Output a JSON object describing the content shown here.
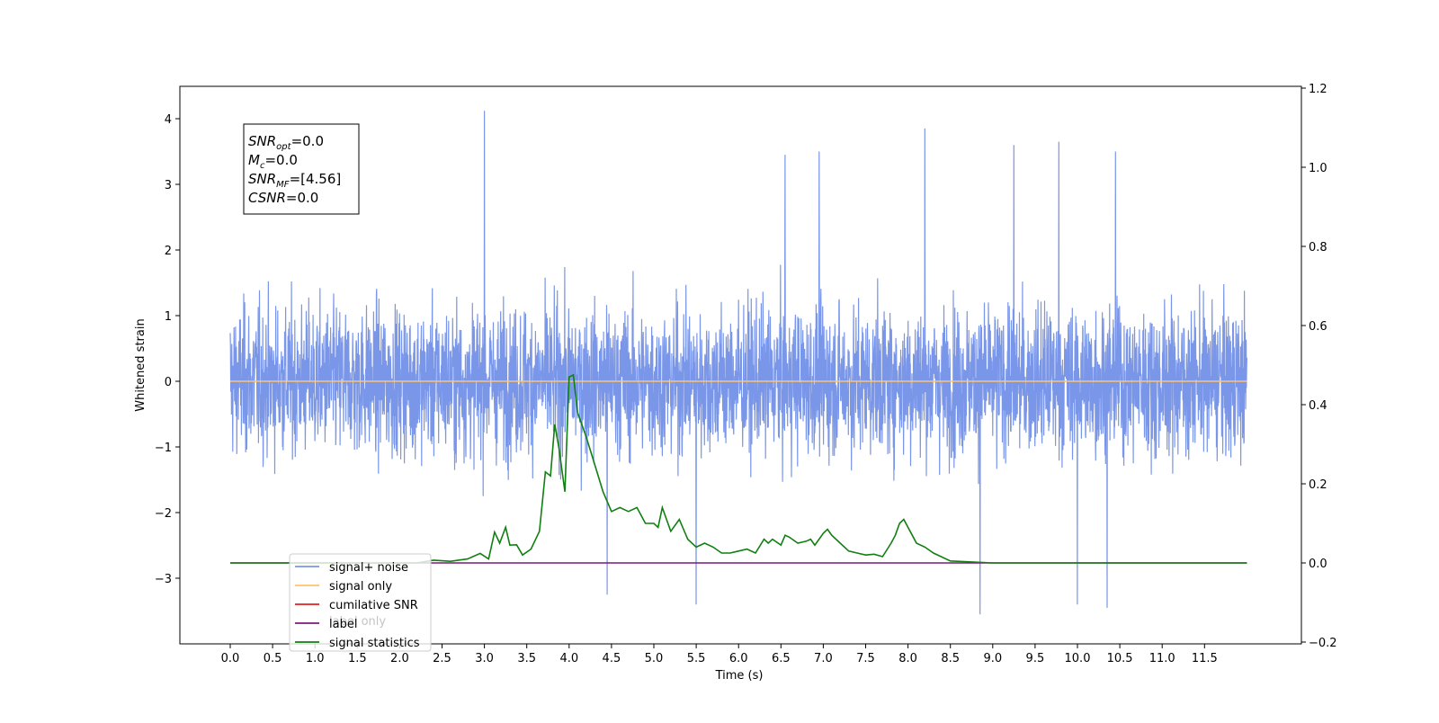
{
  "chart_data": {
    "type": "line",
    "xlabel": "Time (s)",
    "ylabel_left": "Whitened strain",
    "ylabel_right": "",
    "xlim": [
      -0.6,
      12.6
    ],
    "ylim_left": [
      -3.95,
      4.5
    ],
    "ylim_right": [
      -0.2,
      1.2
    ],
    "x_ticks": [
      "0.0",
      "0.5",
      "1.0",
      "1.5",
      "2.0",
      "2.5",
      "3.0",
      "3.5",
      "4.0",
      "4.5",
      "5.0",
      "5.5",
      "6.0",
      "6.5",
      "7.0",
      "7.5",
      "8.0",
      "8.5",
      "9.0",
      "9.5",
      "10.0",
      "10.5",
      "11.0",
      "11.5"
    ],
    "y_ticks_left": [
      "4",
      "3",
      "2",
      "1",
      "0",
      "−1",
      "−2",
      "−3"
    ],
    "y_ticks_right": [
      "1.2",
      "1.0",
      "0.8",
      "0.6",
      "0.4",
      "0.2",
      "0.0",
      "−0.2"
    ],
    "grid": false,
    "legend_position": "lower-left",
    "annotation": {
      "lines": [
        {
          "base": "SNR",
          "sub": "opt",
          "rest": "=0.0"
        },
        {
          "base": "M",
          "sub": "c",
          "rest": "=0.0"
        },
        {
          "base": "SNR",
          "sub": "MF",
          "rest": "=[4.56]"
        },
        {
          "base": "CSNR",
          "sub": "",
          "rest": "=0.0"
        }
      ]
    },
    "legend_entries": [
      {
        "label": "signal+ noise",
        "color": "#7a96e8"
      },
      {
        "label": "signal only",
        "color": "#ffc36e"
      },
      {
        "label": "cumilative SNR",
        "color": "#e02020"
      },
      {
        "label": "label",
        "color": "#7a1a7a"
      },
      {
        "label": "signal statistics",
        "color": "#117f11"
      }
    ],
    "hidden_legend_text": "label only",
    "series": [
      {
        "name": "signal+ noise",
        "axis": "left",
        "color": "#7a96e8",
        "x_range": [
          0.0,
          12.0
        ],
        "envelope_typical": [
          -1.8,
          1.9
        ],
        "peaks": [
          {
            "x": 3.0,
            "y": 4.12
          },
          {
            "x": 6.55,
            "y": 3.45
          },
          {
            "x": 6.95,
            "y": 3.5
          },
          {
            "x": 8.2,
            "y": 3.85
          },
          {
            "x": 9.25,
            "y": 3.6
          },
          {
            "x": 9.78,
            "y": 3.65
          },
          {
            "x": 10.45,
            "y": 3.5
          },
          {
            "x": 8.85,
            "y": -3.55
          },
          {
            "x": 10.35,
            "y": -3.45
          },
          {
            "x": 5.5,
            "y": -3.4
          },
          {
            "x": 4.45,
            "y": -3.25
          },
          {
            "x": 10.0,
            "y": -3.4
          }
        ]
      },
      {
        "name": "signal only",
        "axis": "left",
        "color": "#ffc36e",
        "x": [
          0.0,
          12.0
        ],
        "y": [
          0.0,
          0.0
        ]
      },
      {
        "name": "label",
        "axis": "right",
        "color": "#7a1a7a",
        "x": [
          0.0,
          12.0
        ],
        "y": [
          0.0,
          0.0
        ]
      },
      {
        "name": "signal statistics",
        "axis": "right",
        "color": "#117f11",
        "x": [
          0.0,
          2.2,
          2.4,
          2.6,
          2.8,
          2.95,
          3.05,
          3.12,
          3.18,
          3.25,
          3.3,
          3.38,
          3.45,
          3.55,
          3.65,
          3.72,
          3.78,
          3.83,
          3.88,
          3.95,
          4.0,
          4.05,
          4.1,
          4.2,
          4.3,
          4.4,
          4.5,
          4.6,
          4.7,
          4.8,
          4.9,
          5.0,
          5.05,
          5.1,
          5.2,
          5.3,
          5.4,
          5.5,
          5.6,
          5.7,
          5.8,
          5.9,
          6.0,
          6.1,
          6.2,
          6.3,
          6.35,
          6.4,
          6.5,
          6.55,
          6.6,
          6.7,
          6.8,
          6.85,
          6.9,
          7.0,
          7.05,
          7.1,
          7.2,
          7.3,
          7.4,
          7.5,
          7.6,
          7.7,
          7.8,
          7.85,
          7.9,
          7.95,
          8.0,
          8.1,
          8.2,
          8.3,
          8.5,
          9.0,
          12.0
        ],
        "y": [
          0.0,
          0.0,
          0.007,
          0.004,
          0.01,
          0.024,
          0.01,
          0.078,
          0.05,
          0.09,
          0.045,
          0.046,
          0.02,
          0.035,
          0.08,
          0.23,
          0.22,
          0.35,
          0.29,
          0.18,
          0.47,
          0.475,
          0.38,
          0.32,
          0.25,
          0.18,
          0.13,
          0.14,
          0.13,
          0.14,
          0.1,
          0.1,
          0.09,
          0.14,
          0.08,
          0.11,
          0.06,
          0.04,
          0.05,
          0.04,
          0.025,
          0.025,
          0.03,
          0.035,
          0.025,
          0.06,
          0.05,
          0.06,
          0.045,
          0.07,
          0.065,
          0.05,
          0.055,
          0.06,
          0.045,
          0.075,
          0.085,
          0.07,
          0.05,
          0.03,
          0.025,
          0.02,
          0.022,
          0.016,
          0.05,
          0.07,
          0.1,
          0.11,
          0.09,
          0.05,
          0.04,
          0.025,
          0.005,
          0.0,
          0.0
        ]
      }
    ]
  }
}
